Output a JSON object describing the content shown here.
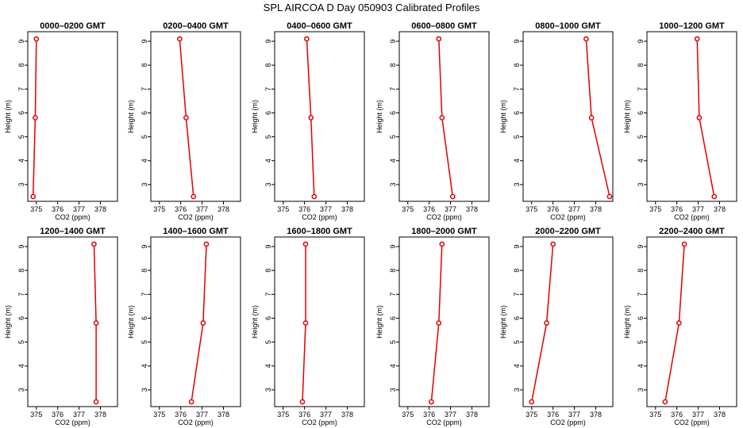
{
  "page_title": "SPL AIRCOA D  Day 050903  Calibrated Profiles",
  "styles": {
    "line_color": "#e00000",
    "marker_color": "#e00000",
    "frame_color": "#000000"
  },
  "chart_data": [
    {
      "type": "line",
      "title": "0000–0200 GMT",
      "xlabel": "CO2 (ppm)",
      "ylabel": "Height (m)",
      "xlim": [
        374.6,
        378.8
      ],
      "ylim": [
        2.3,
        9.4
      ],
      "xticks": [
        375,
        376,
        377,
        378
      ],
      "yticks": [
        3,
        4,
        5,
        6,
        7,
        8,
        9
      ],
      "x": [
        374.85,
        374.95,
        375.0
      ],
      "y": [
        2.5,
        5.8,
        9.1
      ],
      "grid": false
    },
    {
      "type": "line",
      "title": "0200–0400 GMT",
      "xlabel": "CO2 (ppm)",
      "ylabel": "Height (m)",
      "xlim": [
        374.6,
        378.8
      ],
      "ylim": [
        2.3,
        9.4
      ],
      "xticks": [
        375,
        376,
        377,
        378
      ],
      "yticks": [
        3,
        4,
        5,
        6,
        7,
        8,
        9
      ],
      "x": [
        376.6,
        376.25,
        375.95
      ],
      "y": [
        2.5,
        5.8,
        9.1
      ],
      "grid": false
    },
    {
      "type": "line",
      "title": "0400–0600 GMT",
      "xlabel": "CO2 (ppm)",
      "ylabel": "Height (m)",
      "xlim": [
        374.6,
        378.8
      ],
      "ylim": [
        2.3,
        9.4
      ],
      "xticks": [
        375,
        376,
        377,
        378
      ],
      "yticks": [
        3,
        4,
        5,
        6,
        7,
        8,
        9
      ],
      "x": [
        376.45,
        376.3,
        376.1
      ],
      "y": [
        2.5,
        5.8,
        9.1
      ],
      "grid": false
    },
    {
      "type": "line",
      "title": "0600–0800 GMT",
      "xlabel": "CO2 (ppm)",
      "ylabel": "Height (m)",
      "xlim": [
        374.6,
        378.8
      ],
      "ylim": [
        2.3,
        9.4
      ],
      "xticks": [
        375,
        376,
        377,
        378
      ],
      "yticks": [
        3,
        4,
        5,
        6,
        7,
        8,
        9
      ],
      "x": [
        377.1,
        376.6,
        376.45
      ],
      "y": [
        2.5,
        5.8,
        9.1
      ],
      "grid": false
    },
    {
      "type": "line",
      "title": "0800–1000 GMT",
      "xlabel": "CO2 (ppm)",
      "ylabel": "Height (m)",
      "xlim": [
        374.6,
        378.8
      ],
      "ylim": [
        2.3,
        9.4
      ],
      "xticks": [
        375,
        376,
        377,
        378
      ],
      "yticks": [
        3,
        4,
        5,
        6,
        7,
        8,
        9
      ],
      "x": [
        378.65,
        377.8,
        377.55
      ],
      "y": [
        2.5,
        5.8,
        9.1
      ],
      "grid": false
    },
    {
      "type": "line",
      "title": "1000–1200 GMT",
      "xlabel": "CO2 (ppm)",
      "ylabel": "Height (m)",
      "xlim": [
        374.6,
        378.8
      ],
      "ylim": [
        2.3,
        9.4
      ],
      "xticks": [
        375,
        376,
        377,
        378
      ],
      "yticks": [
        3,
        4,
        5,
        6,
        7,
        8,
        9
      ],
      "x": [
        377.75,
        377.05,
        376.95
      ],
      "y": [
        2.5,
        5.8,
        9.1
      ],
      "grid": false
    },
    {
      "type": "line",
      "title": "1200–1400 GMT",
      "xlabel": "CO2 (ppm)",
      "ylabel": "Height (m)",
      "xlim": [
        374.6,
        378.8
      ],
      "ylim": [
        2.3,
        9.4
      ],
      "xticks": [
        375,
        376,
        377,
        378
      ],
      "yticks": [
        3,
        4,
        5,
        6,
        7,
        8,
        9
      ],
      "x": [
        377.8,
        377.8,
        377.7
      ],
      "y": [
        2.5,
        5.8,
        9.1
      ],
      "grid": false
    },
    {
      "type": "line",
      "title": "1400–1600 GMT",
      "xlabel": "CO2 (ppm)",
      "ylabel": "Height (m)",
      "xlim": [
        374.6,
        378.8
      ],
      "ylim": [
        2.3,
        9.4
      ],
      "xticks": [
        375,
        376,
        377,
        378
      ],
      "yticks": [
        3,
        4,
        5,
        6,
        7,
        8,
        9
      ],
      "x": [
        376.5,
        377.05,
        377.2
      ],
      "y": [
        2.5,
        5.8,
        9.1
      ],
      "grid": false
    },
    {
      "type": "line",
      "title": "1600–1800 GMT",
      "xlabel": "CO2 (ppm)",
      "ylabel": "Height (m)",
      "xlim": [
        374.6,
        378.8
      ],
      "ylim": [
        2.3,
        9.4
      ],
      "xticks": [
        375,
        376,
        377,
        378
      ],
      "yticks": [
        3,
        4,
        5,
        6,
        7,
        8,
        9
      ],
      "x": [
        375.9,
        376.05,
        376.05
      ],
      "y": [
        2.5,
        5.8,
        9.1
      ],
      "grid": false
    },
    {
      "type": "line",
      "title": "1800–2000 GMT",
      "xlabel": "CO2 (ppm)",
      "ylabel": "Height (m)",
      "xlim": [
        374.6,
        378.8
      ],
      "ylim": [
        2.3,
        9.4
      ],
      "xticks": [
        375,
        376,
        377,
        378
      ],
      "yticks": [
        3,
        4,
        5,
        6,
        7,
        8,
        9
      ],
      "x": [
        376.1,
        376.45,
        376.6
      ],
      "y": [
        2.5,
        5.8,
        9.1
      ],
      "grid": false
    },
    {
      "type": "line",
      "title": "2000–2200 GMT",
      "xlabel": "CO2 (ppm)",
      "ylabel": "Height (m)",
      "xlim": [
        374.6,
        378.8
      ],
      "ylim": [
        2.3,
        9.4
      ],
      "xticks": [
        375,
        376,
        377,
        378
      ],
      "yticks": [
        3,
        4,
        5,
        6,
        7,
        8,
        9
      ],
      "x": [
        375.0,
        375.7,
        376.0
      ],
      "y": [
        2.5,
        5.8,
        9.1
      ],
      "grid": false
    },
    {
      "type": "line",
      "title": "2200–2400 GMT",
      "xlabel": "CO2 (ppm)",
      "ylabel": "Height (m)",
      "xlim": [
        374.6,
        378.8
      ],
      "ylim": [
        2.3,
        9.4
      ],
      "xticks": [
        375,
        376,
        377,
        378
      ],
      "yticks": [
        3,
        4,
        5,
        6,
        7,
        8,
        9
      ],
      "x": [
        375.45,
        376.1,
        376.35
      ],
      "y": [
        2.5,
        5.8,
        9.1
      ],
      "grid": false
    }
  ]
}
